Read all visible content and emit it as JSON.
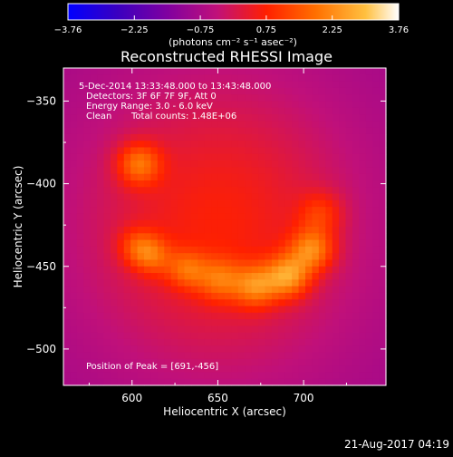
{
  "chart_data": {
    "type": "heatmap",
    "title": "Reconstructed RHESSI Image",
    "xlabel": "Heliocentric X (arcsec)",
    "ylabel": "Heliocentric Y (arcsec)",
    "xlim": [
      560,
      748
    ],
    "ylim": [
      -522,
      -330
    ],
    "x_ticks": [
      600,
      650,
      700
    ],
    "y_ticks": [
      -350,
      -400,
      -450,
      -500
    ],
    "colorbar": {
      "min": -3.76,
      "max": 3.76,
      "tick_values": [
        -3.76,
        -2.25,
        -0.75,
        0.75,
        2.25,
        3.76
      ],
      "tick_labels": [
        "-3.76",
        "-2.25",
        "-0.75",
        "0.75",
        "2.25",
        "3.76"
      ],
      "units_label": "(photons cm⁻² s⁻¹ asec⁻²)"
    },
    "annotations": [
      "5-Dec-2014 13:33:48.000 to 13:43:48.000",
      "Detectors: 3F 6F 7F 9F, Att 0",
      "Energy Range: 3.0 - 6.0 keV",
      "Clean",
      "Total counts: 1.48E+06"
    ],
    "peak_label": "Position of Peak = [691,-456]",
    "peak": [
      691,
      -456
    ],
    "sources": [
      {
        "x": 604,
        "y": -388,
        "amp": 1.9,
        "sigma": 9
      },
      {
        "x": 603,
        "y": -438,
        "amp": 1.2,
        "sigma": 8
      },
      {
        "x": 612,
        "y": -444,
        "amp": 1.3,
        "sigma": 8
      },
      {
        "x": 632,
        "y": -452,
        "amp": 1.4,
        "sigma": 8
      },
      {
        "x": 651,
        "y": -458,
        "amp": 1.5,
        "sigma": 9
      },
      {
        "x": 672,
        "y": -462,
        "amp": 1.9,
        "sigma": 9
      },
      {
        "x": 691,
        "y": -456,
        "amp": 2.3,
        "sigma": 9
      },
      {
        "x": 705,
        "y": -440,
        "amp": 2.1,
        "sigma": 9
      },
      {
        "x": 710,
        "y": -418,
        "amp": 1.1,
        "sigma": 9
      }
    ],
    "background": {
      "x": 650,
      "y": -425,
      "amp": 1.6,
      "sigma_x": 58,
      "sigma_y": 64
    }
  },
  "footer_date": "21-Aug-2017 04:19",
  "colors": {
    "background": "#000000",
    "text": "#ffffff"
  }
}
